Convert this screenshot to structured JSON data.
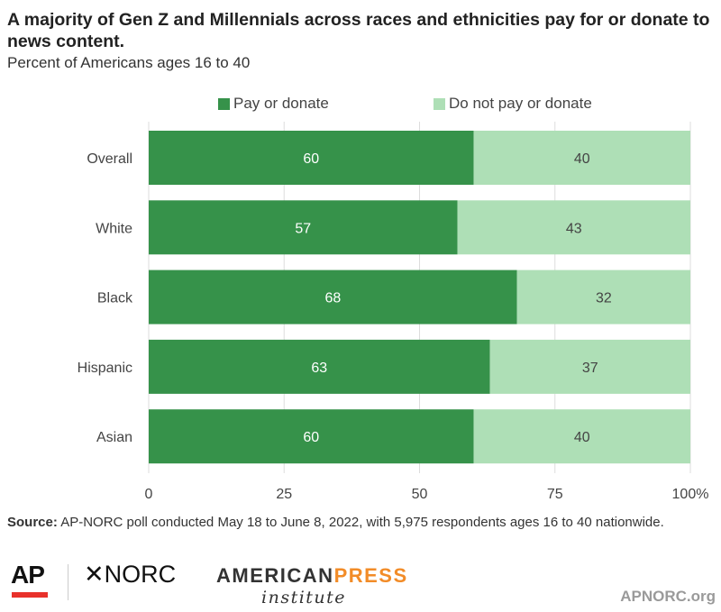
{
  "title": "A majority of Gen Z and Millennials across races and ethnicities pay for or donate to news content.",
  "subtitle": "Percent of Americans ages 16 to 40",
  "source_label": "Source:",
  "source_text": " AP-NORC poll conducted May 18 to June 8, 2022, with 5,975 respondents ages 16 to 40 nationwide.",
  "logos": {
    "ap": "AP",
    "norc": "✕NORC",
    "api_american": "AMERICAN",
    "api_press": "PRESS",
    "api_institute": "institute"
  },
  "footer_url": "APNORC.org",
  "chart_data": {
    "type": "bar",
    "orientation": "horizontal",
    "stacked": true,
    "categories": [
      "Overall",
      "White",
      "Black",
      "Hispanic",
      "Asian"
    ],
    "series": [
      {
        "name": "Pay or donate",
        "values": [
          60,
          57,
          68,
          63,
          60
        ],
        "color": "#36924a"
      },
      {
        "name": "Do not pay or donate",
        "values": [
          40,
          43,
          32,
          37,
          40
        ],
        "color": "#aedfb6"
      }
    ],
    "xlim": [
      0,
      100
    ],
    "xticks": [
      "0",
      "25",
      "50",
      "75",
      "100%"
    ],
    "tick_values": [
      0,
      25,
      50,
      75,
      100
    ],
    "grid": true,
    "legend": "top"
  }
}
